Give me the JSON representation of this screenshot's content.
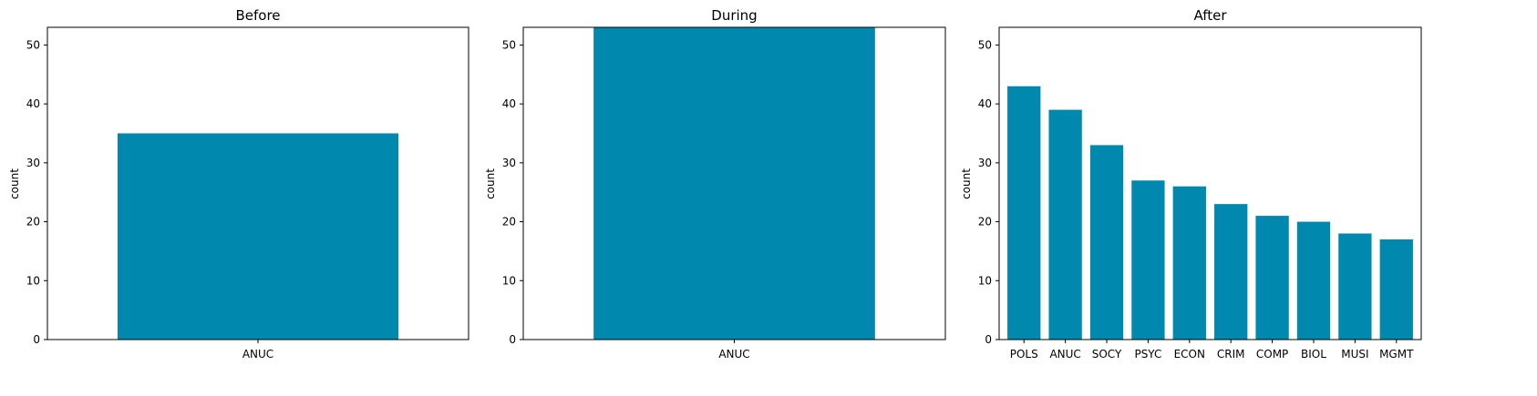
{
  "chart_data": [
    {
      "type": "bar",
      "title": "Before",
      "ylabel": "count",
      "xlabel": "",
      "ylim": [
        0,
        53
      ],
      "yticks": [
        0,
        10,
        20,
        30,
        40,
        50
      ],
      "categories": [
        "ANUC"
      ],
      "values": [
        35
      ],
      "color": "#0088ae",
      "grid": false
    },
    {
      "type": "bar",
      "title": "During",
      "ylabel": "count",
      "xlabel": "",
      "ylim": [
        0,
        53
      ],
      "yticks": [
        0,
        10,
        20,
        30,
        40,
        50
      ],
      "categories": [
        "ANUC"
      ],
      "values": [
        53
      ],
      "color": "#0088ae",
      "grid": false
    },
    {
      "type": "bar",
      "title": "After",
      "ylabel": "count",
      "xlabel": "",
      "ylim": [
        0,
        53
      ],
      "yticks": [
        0,
        10,
        20,
        30,
        40,
        50
      ],
      "categories": [
        "POLS",
        "ANUC",
        "SOCY",
        "PSYC",
        "ECON",
        "CRIM",
        "COMP",
        "BIOL",
        "MUSI",
        "MGMT"
      ],
      "values": [
        43,
        39,
        33,
        27,
        26,
        23,
        21,
        20,
        18,
        17
      ],
      "color": "#0088ae",
      "grid": false
    }
  ]
}
